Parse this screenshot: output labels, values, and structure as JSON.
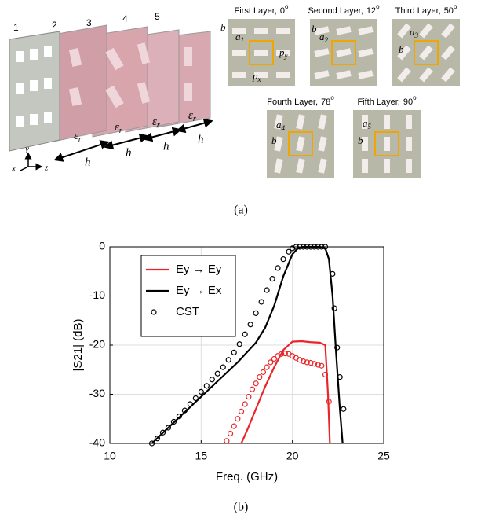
{
  "panel_a": {
    "layer_numbers": [
      "1",
      "2",
      "3",
      "4",
      "5"
    ],
    "epsilon": {
      "base": "ε",
      "sub": "r"
    },
    "h": "h",
    "axes": {
      "x": "x",
      "y": "y",
      "z": "z"
    },
    "layers": [
      {
        "name": "First Layer,",
        "angle": 0,
        "unit": "o",
        "labels": [
          {
            "base": "b"
          },
          {
            "base": "a",
            "sub": "1"
          },
          {
            "base": "p",
            "sub": "y"
          },
          {
            "base": "p",
            "sub": "x"
          }
        ]
      },
      {
        "name": "Second Layer,",
        "angle": 12,
        "unit": "o",
        "labels": [
          {
            "base": "a",
            "sub": "2"
          },
          {
            "base": "b"
          }
        ]
      },
      {
        "name": "Third Layer,",
        "angle": 50,
        "unit": "o",
        "labels": [
          {
            "base": "a",
            "sub": "3"
          },
          {
            "base": "b"
          }
        ]
      },
      {
        "name": "Fourth Layer,",
        "angle": 78,
        "unit": "o",
        "labels": [
          {
            "base": "a",
            "sub": "4"
          },
          {
            "base": "b"
          }
        ]
      },
      {
        "name": "Fifth Layer,",
        "angle": 90,
        "unit": "o",
        "labels": [
          {
            "base": "a",
            "sub": "5"
          },
          {
            "base": "b"
          }
        ]
      }
    ],
    "caption": "(a)"
  },
  "chart_data": {
    "type": "line",
    "xlabel": "Freq. (GHz)",
    "ylabel": "|S21| (dB)",
    "xlim": [
      10,
      25
    ],
    "ylim": [
      -40,
      0
    ],
    "xticks": [
      10,
      15,
      20,
      25
    ],
    "yticks": [
      -40,
      -30,
      -20,
      -10,
      0
    ],
    "grid": true,
    "legend": "upper left",
    "series": [
      {
        "name": "Ey → Ey",
        "color": "#e8262a",
        "style": "line",
        "x": [
          17.2,
          17.5,
          18,
          18.5,
          19,
          19.5,
          20,
          20.5,
          21,
          21.5,
          21.8,
          21.95,
          22.05
        ],
        "values": [
          -40,
          -37.5,
          -33,
          -28.5,
          -24.5,
          -21,
          -19.3,
          -19.2,
          -19.4,
          -19.5,
          -20,
          -30,
          -40
        ]
      },
      {
        "name": "Ey → Ex",
        "color": "#000000",
        "style": "line",
        "x": [
          12.3,
          13,
          14,
          15,
          16,
          17,
          18,
          18.5,
          19,
          19.5,
          20,
          20.3,
          20.6,
          21,
          21.5,
          21.8,
          22,
          22.2,
          22.4,
          22.6,
          22.75
        ],
        "values": [
          -40,
          -37.5,
          -34,
          -30.5,
          -27,
          -23.5,
          -19.5,
          -16.5,
          -12,
          -6,
          -1.5,
          -0.3,
          0,
          0,
          0,
          -0.3,
          -2.5,
          -10,
          -22,
          -33,
          -40
        ]
      },
      {
        "name": "CST",
        "color": "#000000",
        "style": "markers",
        "x": [
          12.3,
          12.6,
          12.9,
          13.2,
          13.5,
          13.8,
          14.1,
          14.4,
          14.7,
          15,
          15.3,
          15.6,
          15.9,
          16.2,
          16.5,
          16.8,
          17.1,
          17.4,
          17.7,
          18,
          18.3,
          18.6,
          18.9,
          19.2,
          19.5,
          19.8,
          20,
          20.2,
          20.4,
          20.6,
          20.8,
          21,
          21.2,
          21.4,
          21.6,
          21.8,
          22.2,
          22.3,
          22.45,
          22.6,
          22.8
        ],
        "values": [
          -40,
          -39,
          -37.8,
          -36.8,
          -35.6,
          -34.5,
          -33.3,
          -32,
          -30.8,
          -29.5,
          -28.3,
          -27,
          -25.8,
          -24.5,
          -23,
          -21.5,
          -19.8,
          -17.8,
          -15.8,
          -13.5,
          -11.2,
          -8.8,
          -6.5,
          -4.3,
          -2.5,
          -1,
          -0.3,
          0,
          0,
          0,
          0,
          0,
          0,
          0,
          0,
          0,
          -5.5,
          -12.5,
          -20.5,
          -26.5,
          -33
        ]
      },
      {
        "name": "CST",
        "color": "#e8262a",
        "style": "markers",
        "x": [
          16.4,
          16.6,
          16.8,
          17,
          17.2,
          17.4,
          17.6,
          17.8,
          18,
          18.2,
          18.4,
          18.6,
          18.8,
          19,
          19.2,
          19.4,
          19.6,
          19.8,
          20,
          20.2,
          20.4,
          20.6,
          20.8,
          21,
          21.2,
          21.4,
          21.6,
          21.8,
          22
        ],
        "values": [
          -39.5,
          -38,
          -36.5,
          -35,
          -33.5,
          -32,
          -30.5,
          -29,
          -27.8,
          -26.5,
          -25.5,
          -24.5,
          -23.5,
          -22.8,
          -22.2,
          -21.8,
          -21.7,
          -21.8,
          -22.2,
          -22.6,
          -23,
          -23.3,
          -23.5,
          -23.6,
          -23.8,
          -24,
          -24.2,
          -26,
          -31.5
        ]
      }
    ]
  },
  "caption_b": "(b)"
}
